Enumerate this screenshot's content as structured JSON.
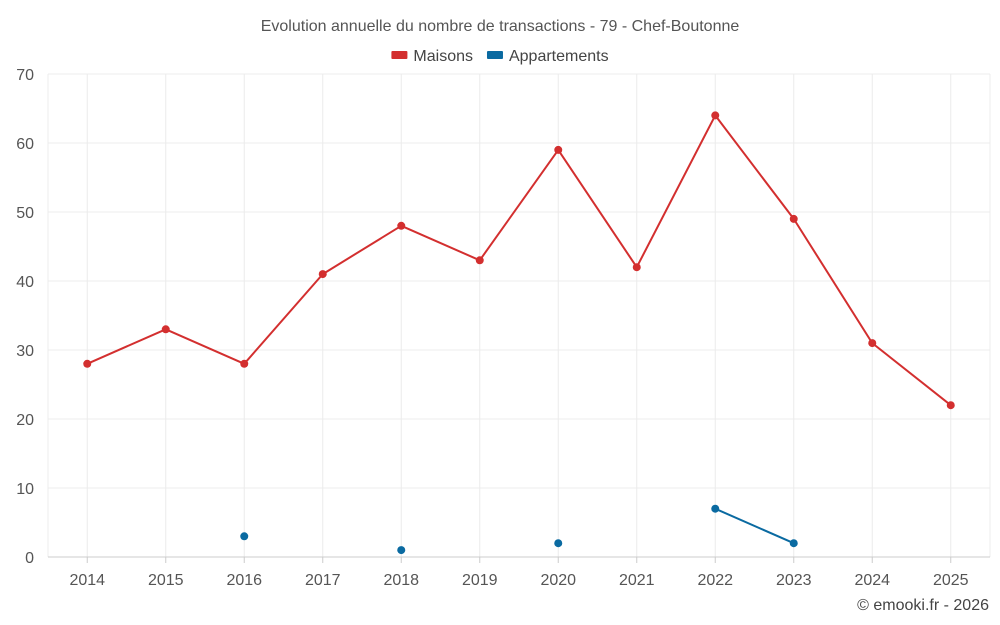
{
  "chart_data": {
    "type": "line",
    "title": "Evolution annuelle du nombre de transactions - 79 - Chef-Boutonne",
    "categories": [
      "2014",
      "2015",
      "2016",
      "2017",
      "2018",
      "2019",
      "2020",
      "2021",
      "2022",
      "2023",
      "2024",
      "2025"
    ],
    "ylim": [
      0,
      70
    ],
    "yticks": [
      0,
      10,
      20,
      30,
      40,
      50,
      60,
      70
    ],
    "grid": true,
    "legend_position": "top-center",
    "series": [
      {
        "name": "Maisons",
        "color": "#d32f2f",
        "values": [
          28,
          33,
          28,
          41,
          48,
          43,
          59,
          42,
          64,
          49,
          31,
          22
        ]
      },
      {
        "name": "Appartements",
        "color": "#0a6aa1",
        "values": [
          null,
          null,
          3,
          null,
          1,
          null,
          2,
          null,
          7,
          2,
          null,
          null
        ]
      }
    ]
  },
  "credit": "© emooki.fr - 2026"
}
